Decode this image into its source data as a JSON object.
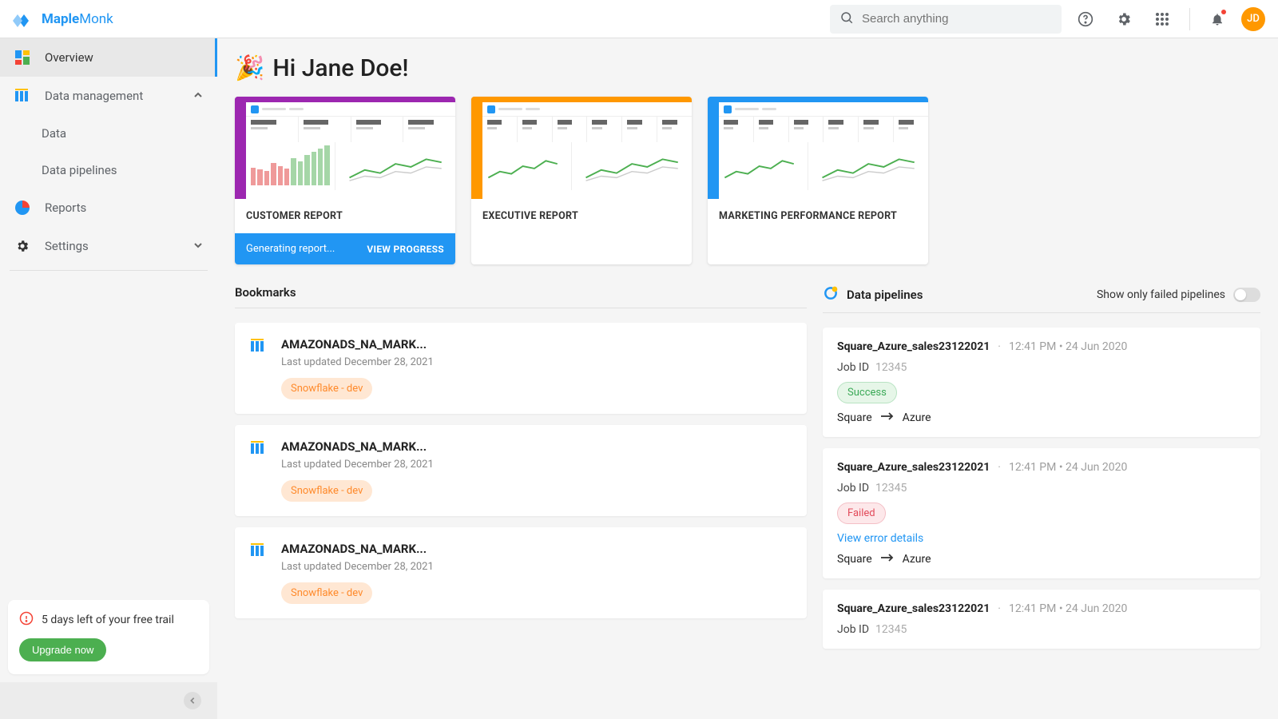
{
  "brand": {
    "name1": "Maple",
    "name2": "Monk"
  },
  "search": {
    "placeholder": "Search anything"
  },
  "avatar": "JD",
  "sidebar": {
    "items": [
      {
        "label": "Overview",
        "icon": "dashboard",
        "active": true
      },
      {
        "label": "Data management",
        "icon": "columns",
        "expanded": true
      },
      {
        "label": "Reports",
        "icon": "pie"
      },
      {
        "label": "Settings",
        "icon": "gear"
      }
    ],
    "sub": [
      {
        "label": "Data"
      },
      {
        "label": "Data pipelines"
      }
    ]
  },
  "trial": {
    "text": "5 days left of your free trail",
    "button": "Upgrade now"
  },
  "greeting": "Hi Jane Doe!",
  "reports": [
    {
      "title": "CUSTOMER REPORT",
      "color": "#9c27b0",
      "status": "Generating report...",
      "action": "VIEW PROGRESS",
      "kpi_count": 4,
      "bars": [
        22,
        20,
        18,
        28,
        24,
        21,
        34,
        30,
        38,
        42,
        46,
        50
      ],
      "bar_colors": [
        "#ef9a9a",
        "#ef9a9a",
        "#ef9a9a",
        "#ef9a9a",
        "#ef9a9a",
        "#ef9a9a",
        "#a5d6a7",
        "#a5d6a7",
        "#a5d6a7",
        "#a5d6a7",
        "#a5d6a7",
        "#a5d6a7"
      ]
    },
    {
      "title": "EXECUTIVE REPORT",
      "color": "#ff9800",
      "kpi_count": 6
    },
    {
      "title": "MARKETING PERFORMANCE REPORT",
      "color": "#2196f3",
      "kpi_count": 6
    }
  ],
  "bookmarks_title": "Bookmarks",
  "bookmarks": [
    {
      "title": "AMAZONADS_NA_MARK...",
      "sub": "Last updated December 28, 2021",
      "tag": "Snowflake - dev"
    },
    {
      "title": "AMAZONADS_NA_MARK...",
      "sub": "Last updated December 28, 2021",
      "tag": "Snowflake - dev"
    },
    {
      "title": "AMAZONADS_NA_MARK...",
      "sub": "Last updated December 28, 2021",
      "tag": "Snowflake - dev"
    }
  ],
  "pipelines_title": "Data pipelines",
  "pipelines_toggle_label": "Show only failed pipelines",
  "job_id_label": "Job ID",
  "view_error_label": "View error details",
  "pipelines": [
    {
      "name": "Square_Azure_sales23122021",
      "time": "12:41 PM",
      "date": "24 Jun 2020",
      "job_id": "12345",
      "status": "Success",
      "from": "Square",
      "to": "Azure"
    },
    {
      "name": "Square_Azure_sales23122021",
      "time": "12:41 PM",
      "date": "24 Jun 2020",
      "job_id": "12345",
      "status": "Failed",
      "from": "Square",
      "to": "Azure",
      "error_link": true
    },
    {
      "name": "Square_Azure_sales23122021",
      "time": "12:41 PM",
      "date": "24 Jun 2020",
      "job_id": "12345"
    }
  ],
  "colors": {
    "primary": "#2196f3",
    "success_bg": "#e6f6e8",
    "success_fg": "#3aa956",
    "failed_bg": "#fde8ea",
    "failed_fg": "#e24b5b",
    "tag_bg": "#ffe7d3",
    "tag_fg": "#ff8a2b"
  }
}
